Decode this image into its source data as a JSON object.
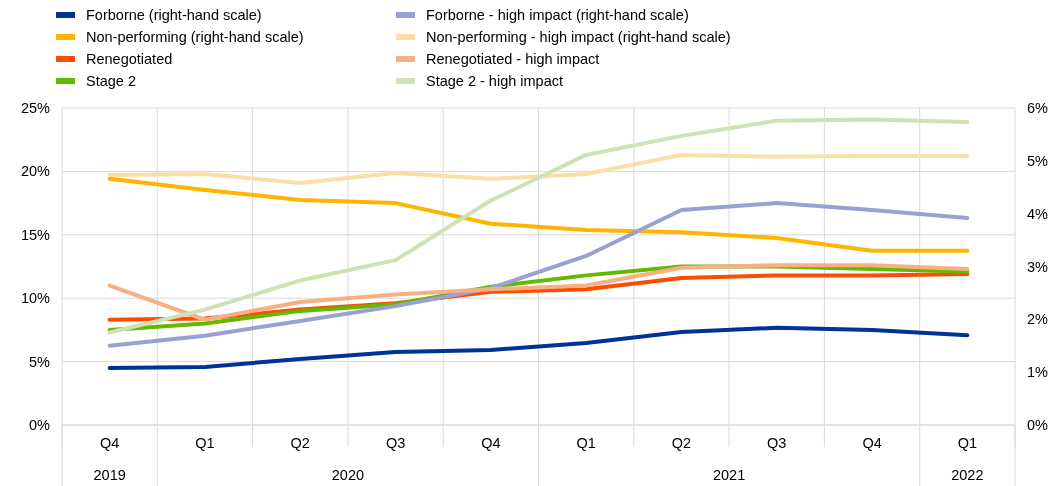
{
  "chart_data": {
    "type": "line",
    "categories": [
      "Q4",
      "Q1",
      "Q2",
      "Q3",
      "Q4",
      "Q1",
      "Q2",
      "Q3",
      "Q4",
      "Q1"
    ],
    "series": [
      {
        "name": "Forborne (right-hand scale)",
        "color": "#003299",
        "axis": "y2",
        "values": [
          1.08,
          1.1,
          1.25,
          1.38,
          1.42,
          1.55,
          1.76,
          1.84,
          1.8,
          1.7
        ]
      },
      {
        "name": "Non-performing (right-hand scale)",
        "color": "#ffb400",
        "axis": "y2",
        "values": [
          4.66,
          4.45,
          4.26,
          4.2,
          3.81,
          3.69,
          3.65,
          3.54,
          3.3,
          3.3
        ]
      },
      {
        "name": "Renegotiated",
        "color": "#ff4b00",
        "values": [
          8.3,
          8.4,
          9.1,
          9.6,
          10.5,
          10.7,
          11.6,
          11.8,
          11.8,
          11.9
        ]
      },
      {
        "name": "Stage 2",
        "color": "#65b800",
        "values": [
          7.5,
          8.0,
          9.0,
          9.5,
          10.9,
          11.8,
          12.5,
          12.5,
          12.3,
          12.1
        ]
      },
      {
        "name": "Forborne - high impact (right-hand scale)",
        "color": "#98a1d0",
        "axis": "y2",
        "values": [
          1.5,
          1.69,
          1.97,
          2.25,
          2.59,
          3.2,
          4.07,
          4.2,
          4.07,
          3.92
        ]
      },
      {
        "name": "Non-performing - high impact (right-hand scale)",
        "color": "#fdddA7",
        "axis": "y2",
        "values": [
          4.73,
          4.75,
          4.58,
          4.77,
          4.66,
          4.75,
          5.11,
          5.08,
          5.09,
          5.09
        ]
      },
      {
        "name": "Renegotiated - high impact",
        "color": "#f6b183",
        "values": [
          11.0,
          8.3,
          9.7,
          10.3,
          10.7,
          11.0,
          12.4,
          12.6,
          12.6,
          12.3
        ]
      },
      {
        "name": "Stage 2 - high impact",
        "color": "#cfe2b2",
        "values": [
          7.3,
          9.1,
          11.4,
          13.0,
          17.7,
          21.3,
          22.8,
          24.0,
          24.1,
          23.9
        ]
      }
    ],
    "ylim": [
      0,
      25
    ],
    "yticks": [
      {
        "value": 0,
        "label": "0%"
      },
      {
        "value": 5,
        "label": "5%"
      },
      {
        "value": 10,
        "label": "10%"
      },
      {
        "value": 15,
        "label": "15%"
      },
      {
        "value": 20,
        "label": "20%"
      },
      {
        "value": 25,
        "label": "25%"
      }
    ],
    "y2lim": [
      0,
      6
    ],
    "y2ticks": [
      {
        "value": 0,
        "label": "0%"
      },
      {
        "value": 1,
        "label": "1%"
      },
      {
        "value": 2,
        "label": "2%"
      },
      {
        "value": 3,
        "label": "3%"
      },
      {
        "value": 4,
        "label": "4%"
      },
      {
        "value": 5,
        "label": "5%"
      },
      {
        "value": 6,
        "label": "6%"
      }
    ],
    "annotations": [
      "2019",
      "2020",
      "2021",
      "2022"
    ],
    "grid": true,
    "legend": "top",
    "marker": "none",
    "line_style": "solid"
  }
}
